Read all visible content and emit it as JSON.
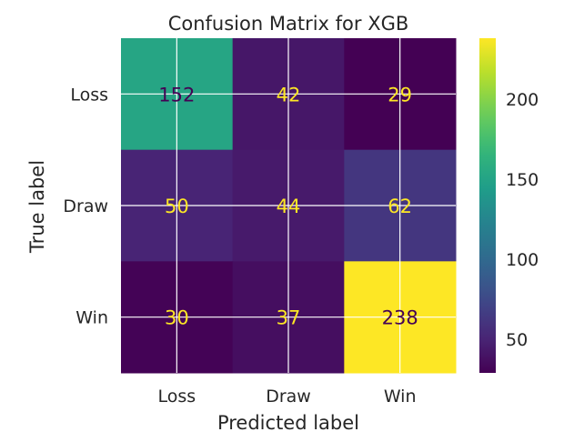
{
  "chart_data": {
    "type": "heatmap",
    "title": "Confusion Matrix for XGB",
    "xlabel": "Predicted label",
    "ylabel": "True label",
    "x_categories": [
      "Loss",
      "Draw",
      "Win"
    ],
    "y_categories": [
      "Loss",
      "Draw",
      "Win"
    ],
    "values": [
      [
        152,
        42,
        29
      ],
      [
        50,
        44,
        62
      ],
      [
        30,
        37,
        238
      ]
    ],
    "colormap": "viridis",
    "colorbar": {
      "range": [
        29,
        238
      ],
      "ticks": [
        50,
        100,
        150,
        200
      ]
    },
    "grid": true,
    "text_colors": {
      "dark": "#440154",
      "light": "#fde725"
    }
  }
}
